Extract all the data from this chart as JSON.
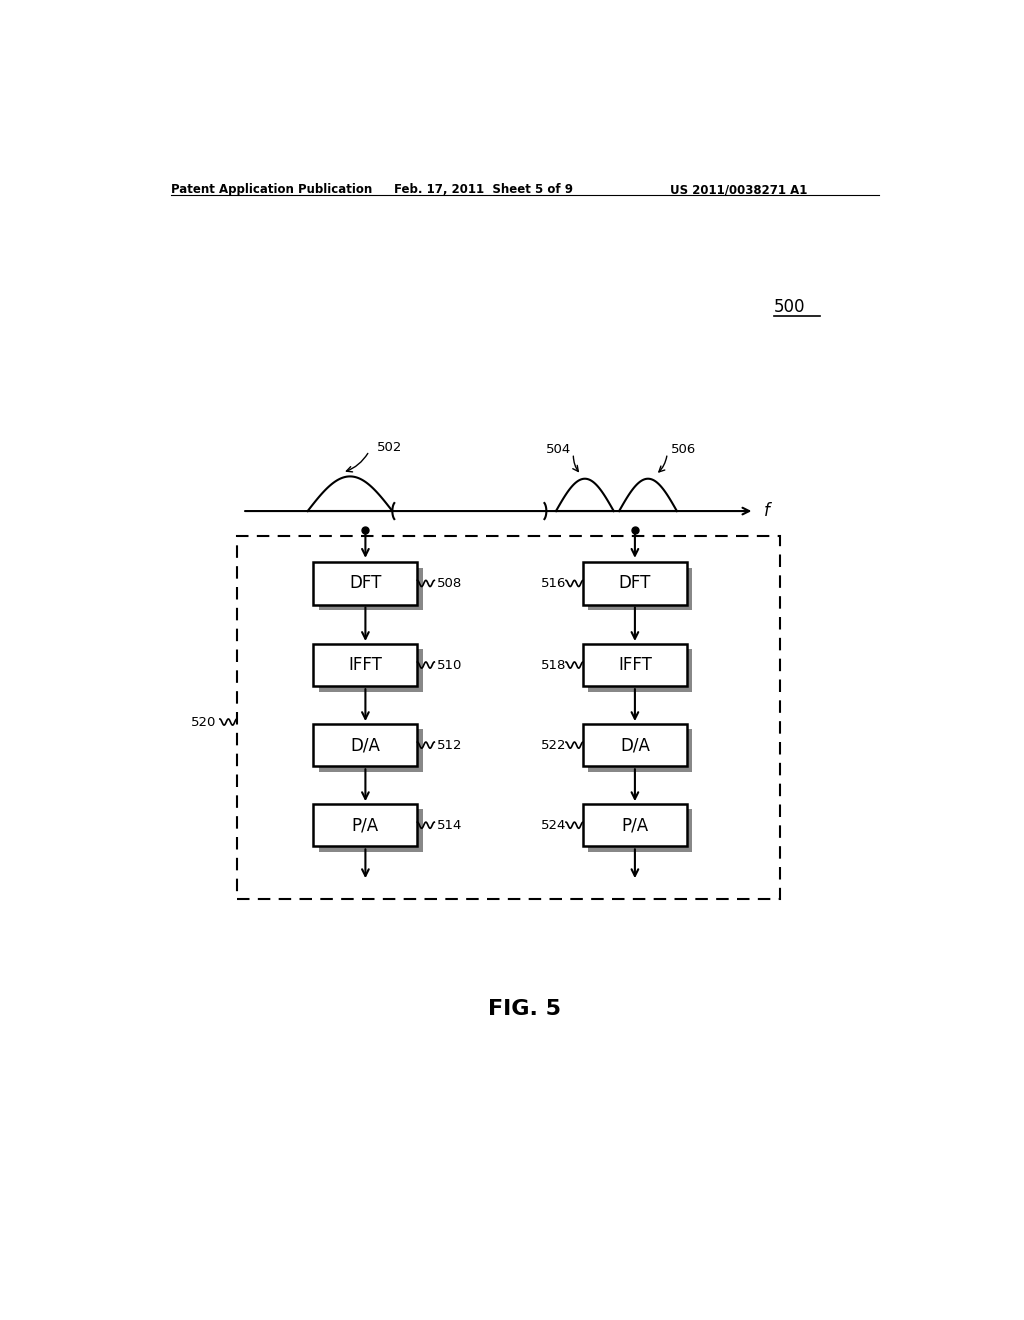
{
  "header_left": "Patent Application Publication",
  "header_mid": "Feb. 17, 2011  Sheet 5 of 9",
  "header_right": "US 2011/0038271 A1",
  "fig_label": "FIG. 5",
  "ref_500": "500",
  "ref_502": "502",
  "ref_504": "504",
  "ref_506": "506",
  "ref_508": "508",
  "ref_510": "510",
  "ref_512": "512",
  "ref_514": "514",
  "ref_516": "516",
  "ref_518": "518",
  "ref_520": "520",
  "ref_522": "522",
  "ref_524": "524",
  "blocks_left": [
    "DFT",
    "IFFT",
    "D/A",
    "P/A"
  ],
  "blocks_right": [
    "DFT",
    "IFFT",
    "D/A",
    "P/A"
  ],
  "bg_color": "#ffffff",
  "text_color": "#000000"
}
